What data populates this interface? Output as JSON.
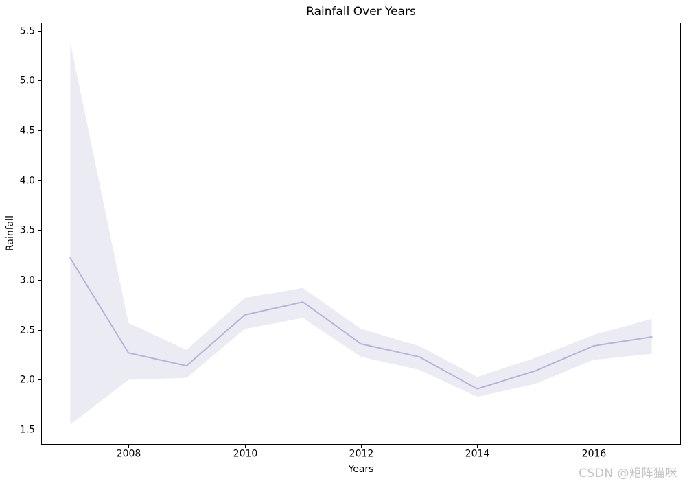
{
  "watermark": {
    "text": "CSDN @矩阵猫咪"
  },
  "colors": {
    "line": "#b4b4d9",
    "band": "#ebebf4",
    "axes": "#000000",
    "text": "#000000",
    "watermark": "#c4c4c4",
    "background": "#ffffff"
  },
  "chart_data": {
    "type": "line",
    "title": "Rainfall Over Years",
    "xlabel": "Years",
    "ylabel": "Rainfall",
    "x": [
      2007,
      2008,
      2009,
      2010,
      2011,
      2012,
      2013,
      2014,
      2015,
      2016,
      2017
    ],
    "series": [
      {
        "name": "rainfall-mean",
        "role": "line",
        "values": [
          3.22,
          2.27,
          2.14,
          2.65,
          2.78,
          2.36,
          2.23,
          1.91,
          2.09,
          2.34,
          2.43
        ]
      },
      {
        "name": "ci-lower",
        "role": "band-lower",
        "values": [
          1.55,
          2.0,
          2.02,
          2.51,
          2.62,
          2.23,
          2.1,
          1.83,
          1.96,
          2.2,
          2.26
        ]
      },
      {
        "name": "ci-upper",
        "role": "band-upper",
        "values": [
          5.38,
          2.57,
          2.3,
          2.82,
          2.92,
          2.51,
          2.34,
          2.03,
          2.22,
          2.45,
          2.61
        ]
      }
    ],
    "xtick_values": [
      2008,
      2010,
      2012,
      2014,
      2016
    ],
    "xtick_labels": [
      "2008",
      "2010",
      "2012",
      "2014",
      "2016"
    ],
    "ytick_values": [
      1.5,
      2.0,
      2.5,
      3.0,
      3.5,
      4.0,
      4.5,
      5.0,
      5.5
    ],
    "ytick_labels": [
      "1.5",
      "2.0",
      "2.5",
      "3.0",
      "3.5",
      "4.0",
      "4.5",
      "5.0",
      "5.5"
    ],
    "xlim": [
      2006.5,
      2017.5
    ],
    "ylim": [
      1.35,
      5.58
    ],
    "grid": false,
    "legend": "none"
  }
}
